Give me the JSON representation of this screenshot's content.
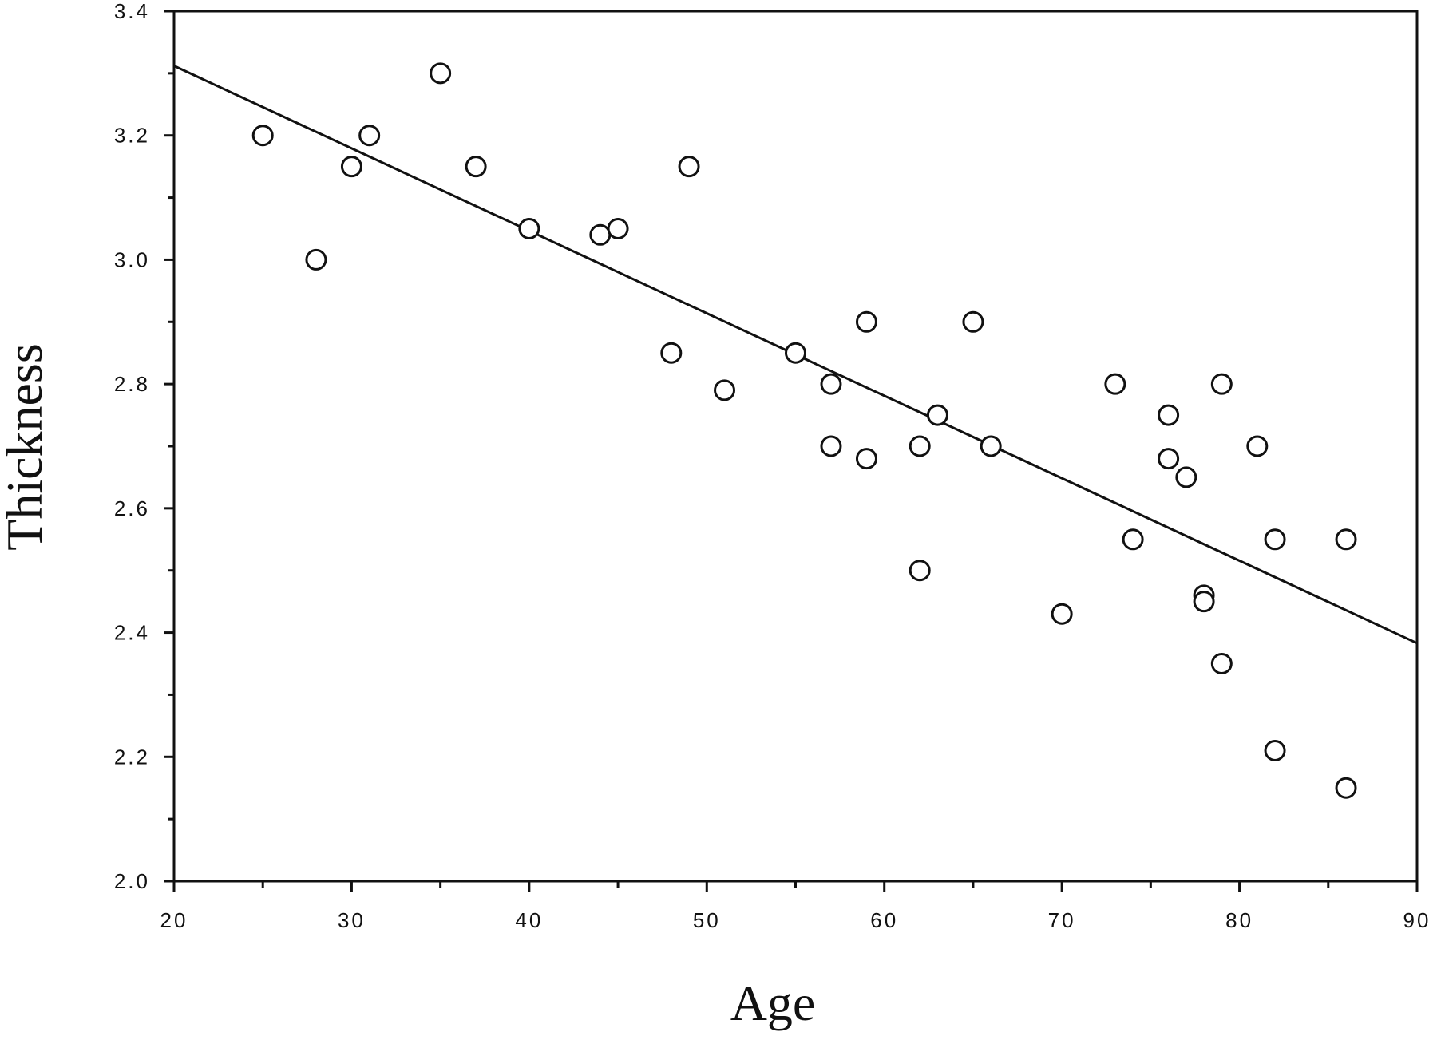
{
  "chart_data": {
    "type": "scatter",
    "title": "",
    "xlabel": "Age",
    "ylabel": "Thickness",
    "xlim": [
      20,
      90
    ],
    "ylim": [
      2.0,
      3.4
    ],
    "x_major_ticks": [
      20,
      30,
      40,
      50,
      60,
      70,
      80,
      90
    ],
    "x_tick_labels": [
      "20",
      "30",
      "40",
      "50",
      "60",
      "70",
      "80",
      "90"
    ],
    "x_minor_ticks": [
      25,
      35,
      45,
      55,
      65,
      75,
      85
    ],
    "y_major_ticks": [
      2.0,
      2.2,
      2.4,
      2.6,
      2.8,
      3.0,
      3.2,
      3.4
    ],
    "y_tick_labels": [
      "2.0",
      "2.2",
      "2.4",
      "2.6",
      "2.8",
      "3.0",
      "3.2",
      "3.4"
    ],
    "y_minor_ticks": [
      2.1,
      2.3,
      2.5,
      2.7,
      2.9,
      3.1,
      3.3
    ],
    "grid": false,
    "legend": "none",
    "marker": "open-circle",
    "colors": {
      "ink": "#111111",
      "background": "#ffffff"
    },
    "series": [
      {
        "points": [
          {
            "x": 25,
            "y": 3.2
          },
          {
            "x": 28,
            "y": 3.0
          },
          {
            "x": 30,
            "y": 3.15
          },
          {
            "x": 31,
            "y": 3.2
          },
          {
            "x": 35,
            "y": 3.3
          },
          {
            "x": 37,
            "y": 3.15
          },
          {
            "x": 40,
            "y": 3.05
          },
          {
            "x": 44,
            "y": 3.04
          },
          {
            "x": 45,
            "y": 3.05
          },
          {
            "x": 48,
            "y": 2.85
          },
          {
            "x": 49,
            "y": 3.15
          },
          {
            "x": 51,
            "y": 2.79
          },
          {
            "x": 55,
            "y": 2.85
          },
          {
            "x": 57,
            "y": 2.8
          },
          {
            "x": 57,
            "y": 2.7
          },
          {
            "x": 59,
            "y": 2.9
          },
          {
            "x": 59,
            "y": 2.68
          },
          {
            "x": 62,
            "y": 2.7
          },
          {
            "x": 62,
            "y": 2.5
          },
          {
            "x": 63,
            "y": 2.75
          },
          {
            "x": 65,
            "y": 2.9
          },
          {
            "x": 66,
            "y": 2.7
          },
          {
            "x": 70,
            "y": 2.43
          },
          {
            "x": 73,
            "y": 2.8
          },
          {
            "x": 74,
            "y": 2.55
          },
          {
            "x": 76,
            "y": 2.75
          },
          {
            "x": 76,
            "y": 2.68
          },
          {
            "x": 77,
            "y": 2.65
          },
          {
            "x": 78,
            "y": 2.46
          },
          {
            "x": 78,
            "y": 2.45
          },
          {
            "x": 79,
            "y": 2.8
          },
          {
            "x": 79,
            "y": 2.35
          },
          {
            "x": 81,
            "y": 2.7
          },
          {
            "x": 82,
            "y": 2.55
          },
          {
            "x": 82,
            "y": 2.21
          },
          {
            "x": 86,
            "y": 2.55
          },
          {
            "x": 86,
            "y": 2.15
          }
        ]
      }
    ],
    "regression_line": {
      "x": [
        20,
        90
      ],
      "y": [
        3.312,
        2.383
      ]
    }
  }
}
